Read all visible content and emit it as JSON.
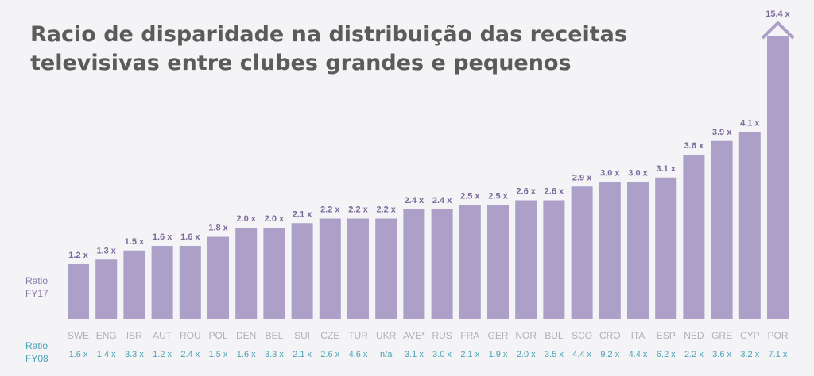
{
  "chart_data": {
    "type": "bar",
    "title": "Racio de disparidade na distribuição das receitas televisivas entre clubes grandes e pequenos",
    "categories": [
      "SWE",
      "ENG",
      "ISR",
      "AUT",
      "ROU",
      "POL",
      "DEN",
      "BEL",
      "SUI",
      "CZE",
      "TUR",
      "UKR",
      "AVE*",
      "RUS",
      "FRA",
      "GER",
      "NOR",
      "BUL",
      "SCO",
      "CRO",
      "ITA",
      "ESP",
      "NED",
      "GRE",
      "CYP",
      "POR"
    ],
    "series": [
      {
        "name": "Ratio FY17",
        "values": [
          1.2,
          1.3,
          1.5,
          1.6,
          1.6,
          1.8,
          2.0,
          2.0,
          2.1,
          2.2,
          2.2,
          2.2,
          2.4,
          2.4,
          2.5,
          2.5,
          2.6,
          2.6,
          2.9,
          3.0,
          3.0,
          3.1,
          3.6,
          3.9,
          4.1,
          15.4
        ],
        "labels": [
          "1.2 x",
          "1.3 x",
          "1.5 x",
          "1.6 x",
          "1.6 x",
          "1.8 x",
          "2.0 x",
          "2.0 x",
          "2.1 x",
          "2.2 x",
          "2.2 x",
          "2.2 x",
          "2.4 x",
          "2.4 x",
          "2.5 x",
          "2.5 x",
          "2.6 x",
          "2.6 x",
          "2.9 x",
          "3.0 x",
          "3.0 x",
          "3.1 x",
          "3.6 x",
          "3.9 x",
          "4.1 x",
          "15.4 x"
        ]
      },
      {
        "name": "Ratio FY08",
        "labels": [
          "1.6 x",
          "1.4 x",
          "3.3 x",
          "1.2 x",
          "2.4 x",
          "1.5 x",
          "1.6 x",
          "3.3 x",
          "2.1 x",
          "2.6 x",
          "4.6 x",
          "n/a",
          "3.1 x",
          "3.0 x",
          "2.1 x",
          "1.9 x",
          "2.0 x",
          "3.5 x",
          "4.4 x",
          "9.2 x",
          "4.4 x",
          "6.2 x",
          "2.2 x",
          "3.6 x",
          "3.2 x",
          "7.1 x"
        ]
      }
    ],
    "series_labels": {
      "fy17": "Ratio FY17",
      "fy08": "Ratio FY08"
    },
    "axis_break": {
      "category": "POR",
      "value": 15.4
    },
    "ylim": [
      0,
      4.1
    ],
    "colors": {
      "bar": "#ac9fc8",
      "bar_label": "#7a6a9a",
      "category_label": "#b0b0b8",
      "fy08_label": "#4aa3b5",
      "fy17_series_label": "#8a7aa8"
    }
  }
}
